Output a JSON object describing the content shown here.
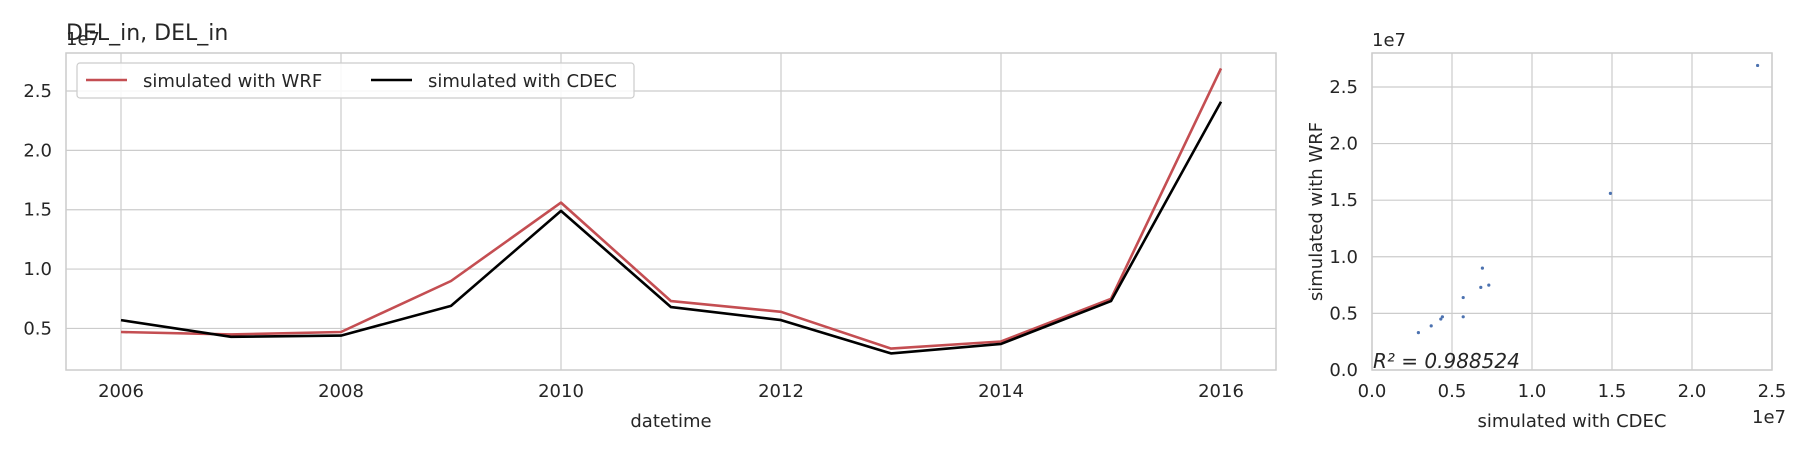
{
  "chart_data": [
    {
      "type": "line",
      "title": "DEL_in, DEL_in",
      "xlabel": "datetime",
      "ylabel": "",
      "y_offset_text": "1e7",
      "x": [
        2006,
        2007,
        2008,
        2009,
        2010,
        2011,
        2012,
        2013,
        2014,
        2015,
        2016
      ],
      "xlim": [
        2005.5,
        2016.5
      ],
      "ylim": [
        1500000,
        28200000
      ],
      "xticks": [
        2006,
        2008,
        2010,
        2012,
        2014,
        2016
      ],
      "xtick_labels": [
        "2006",
        "2008",
        "2010",
        "2012",
        "2014",
        "2016"
      ],
      "yticks": [
        5000000,
        10000000,
        15000000,
        20000000,
        25000000
      ],
      "ytick_labels": [
        "0.5",
        "1.0",
        "1.5",
        "2.0",
        "2.5"
      ],
      "grid": true,
      "legend": "top-left",
      "series": [
        {
          "name": "simulated with WRF",
          "color": "#c44e52",
          "values": [
            4700000,
            4500000,
            4700000,
            9000000,
            15600000,
            7300000,
            6400000,
            3300000,
            3900000,
            7500000,
            26900000
          ]
        },
        {
          "name": "simulated with CDEC",
          "color": "#000000",
          "values": [
            5700000,
            4300000,
            4400000,
            6900000,
            14900000,
            6800000,
            5700000,
            2900000,
            3700000,
            7300000,
            24100000
          ]
        }
      ]
    },
    {
      "type": "scatter",
      "title": "",
      "xlabel": "simulated with CDEC",
      "ylabel": "simulated with WRF",
      "x_offset_text": "1e7",
      "y_offset_text": "1e7",
      "xlim": [
        0,
        25000000
      ],
      "ylim": [
        0,
        28000000
      ],
      "xticks": [
        0,
        5000000,
        10000000,
        15000000,
        20000000,
        25000000
      ],
      "xtick_labels": [
        "0.0",
        "0.5",
        "1.0",
        "1.5",
        "2.0",
        "2.5"
      ],
      "yticks": [
        0,
        5000000,
        10000000,
        15000000,
        20000000,
        25000000
      ],
      "ytick_labels": [
        "0.0",
        "0.5",
        "1.0",
        "1.5",
        "2.0",
        "2.5"
      ],
      "grid": true,
      "point_color": "#4c72b0",
      "annotation": "R² = 0.988524",
      "points": [
        {
          "x": 2900000,
          "y": 3300000
        },
        {
          "x": 3700000,
          "y": 3900000
        },
        {
          "x": 4300000,
          "y": 4500000
        },
        {
          "x": 4400000,
          "y": 4700000
        },
        {
          "x": 5700000,
          "y": 4700000
        },
        {
          "x": 5700000,
          "y": 6400000
        },
        {
          "x": 6800000,
          "y": 7300000
        },
        {
          "x": 7300000,
          "y": 7500000
        },
        {
          "x": 6900000,
          "y": 9000000
        },
        {
          "x": 14900000,
          "y": 15600000
        },
        {
          "x": 24100000,
          "y": 26900000
        }
      ]
    }
  ]
}
